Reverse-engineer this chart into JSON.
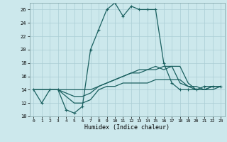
{
  "xlabel": "Humidex (Indice chaleur)",
  "bg_color": "#cce8ec",
  "grid_color": "#aacdd4",
  "line_color": "#1a6060",
  "xlim": [
    -0.5,
    23.5
  ],
  "ylim": [
    10,
    27
  ],
  "xticks": [
    0,
    1,
    2,
    3,
    4,
    5,
    6,
    7,
    8,
    9,
    10,
    11,
    12,
    13,
    14,
    15,
    16,
    17,
    18,
    19,
    20,
    21,
    22,
    23
  ],
  "yticks": [
    10,
    12,
    14,
    16,
    18,
    20,
    22,
    24,
    26
  ],
  "series": [
    {
      "x": [
        0,
        1,
        2,
        3,
        4,
        5,
        6,
        7,
        8,
        9,
        10,
        11,
        12,
        13,
        14,
        15,
        16,
        17,
        18,
        19,
        20,
        21,
        22,
        23
      ],
      "y": [
        14,
        12,
        14,
        14,
        11,
        10.5,
        11.5,
        20,
        23,
        26,
        27,
        25,
        26.5,
        26,
        26,
        26,
        18,
        15,
        14,
        14,
        14,
        14.5,
        14.5,
        14.5
      ],
      "marker": "+",
      "linestyle": "-",
      "lw": 0.9
    },
    {
      "x": [
        0,
        1,
        2,
        3,
        4,
        5,
        6,
        7,
        8,
        9,
        10,
        11,
        12,
        13,
        14,
        15,
        16,
        17,
        18,
        19,
        20,
        21,
        22,
        23
      ],
      "y": [
        14,
        14,
        14,
        14,
        14,
        14,
        14,
        14,
        14.5,
        15,
        15.5,
        16,
        16.5,
        16.5,
        17,
        17,
        17.5,
        17.5,
        15,
        14.5,
        14.5,
        14,
        14,
        14.5
      ],
      "marker": null,
      "linestyle": "-",
      "lw": 0.9
    },
    {
      "x": [
        0,
        1,
        2,
        3,
        4,
        5,
        6,
        7,
        8,
        9,
        10,
        11,
        12,
        13,
        14,
        15,
        16,
        17,
        18,
        19,
        20,
        21,
        22,
        23
      ],
      "y": [
        14,
        14,
        14,
        14,
        13.5,
        13,
        13,
        13.5,
        14.5,
        15,
        15.5,
        16,
        16.5,
        17,
        17,
        17.5,
        17,
        17.5,
        17.5,
        15,
        14,
        14,
        14.5,
        14.5
      ],
      "marker": null,
      "linestyle": "-",
      "lw": 0.9
    },
    {
      "x": [
        0,
        1,
        2,
        3,
        4,
        5,
        6,
        7,
        8,
        9,
        10,
        11,
        12,
        13,
        14,
        15,
        16,
        17,
        18,
        19,
        20,
        21,
        22,
        23
      ],
      "y": [
        14,
        14,
        14,
        14,
        13,
        12,
        12,
        12.5,
        14,
        14.5,
        14.5,
        15,
        15,
        15,
        15,
        15.5,
        15.5,
        15.5,
        15.5,
        14.5,
        14,
        14,
        14.5,
        14.5
      ],
      "marker": null,
      "linestyle": "-",
      "lw": 0.9
    }
  ]
}
